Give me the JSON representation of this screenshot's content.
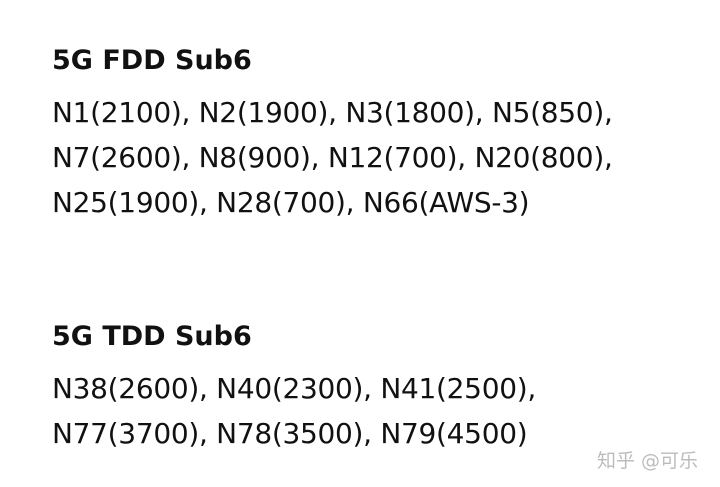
{
  "sections": [
    {
      "title": "5G FDD Sub6",
      "lines": [
        "N1(2100), N2(1900), N3(1800), N5(850),",
        "N7(2600), N8(900), N12(700), N20(800),",
        "N25(1900), N28(700), N66(AWS-3)"
      ]
    },
    {
      "title": "5G TDD Sub6",
      "lines": [
        "N38(2600), N40(2300), N41(2500),",
        "N77(3700), N78(3500), N79(4500)"
      ]
    }
  ],
  "watermark": "知乎 @可乐"
}
